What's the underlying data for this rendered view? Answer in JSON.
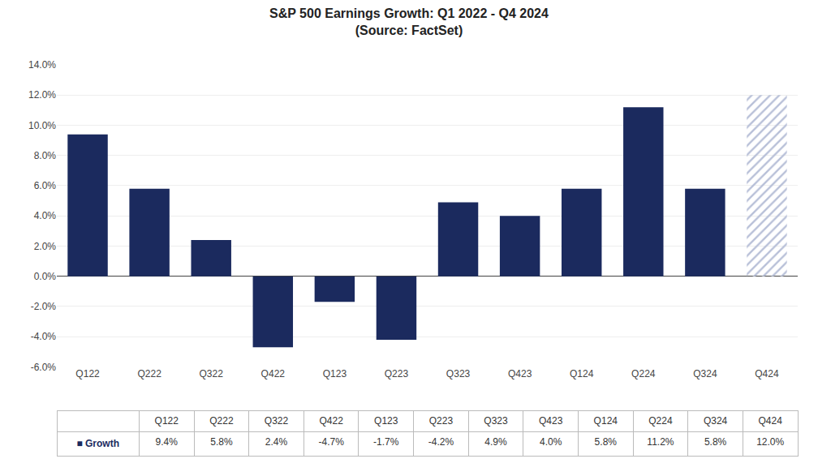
{
  "chart_data": {
    "type": "bar",
    "title": "S&P 500 Earnings Growth: Q1 2022 - Q4 2024",
    "subtitle": "(Source: FactSet)",
    "categories": [
      "Q122",
      "Q222",
      "Q322",
      "Q422",
      "Q123",
      "Q223",
      "Q323",
      "Q423",
      "Q124",
      "Q224",
      "Q324",
      "Q424"
    ],
    "series": [
      {
        "name": "■ Growth",
        "color": "#1b2a5e",
        "values": [
          9.4,
          5.8,
          2.4,
          -4.7,
          -1.7,
          -4.2,
          4.9,
          4.0,
          5.8,
          11.2,
          5.8,
          12.0
        ],
        "value_labels": [
          "9.4%",
          "5.8%",
          "2.4%",
          "-4.7%",
          "-1.7%",
          "-4.2%",
          "4.9%",
          "4.0%",
          "5.8%",
          "11.2%",
          "5.8%",
          "12.0%"
        ],
        "colors": [
          "#1b2a5e",
          "#1b2a5e",
          "#1b2a5e",
          "#1b2a5e",
          "#1b2a5e",
          "#1b2a5e",
          "#1b2a5e",
          "#1b2a5e",
          "#1b2a5e",
          "#1b2a5e",
          "#1b2a5e",
          "#b8c0d8"
        ]
      }
    ],
    "ylim": [
      -6.0,
      14.0
    ],
    "yticks": [
      {
        "value": -6.0,
        "label": "-6.0%"
      },
      {
        "value": -4.0,
        "label": "-4.0%"
      },
      {
        "value": -2.0,
        "label": "-2.0%"
      },
      {
        "value": 0.0,
        "label": "0.0%"
      },
      {
        "value": 2.0,
        "label": "2.0%"
      },
      {
        "value": 4.0,
        "label": "4.0%"
      },
      {
        "value": 6.0,
        "label": "6.0%"
      },
      {
        "value": 8.0,
        "label": "8.0%"
      },
      {
        "value": 10.0,
        "label": "10.0%"
      },
      {
        "value": 12.0,
        "label": "12.0%"
      },
      {
        "value": 14.0,
        "label": "14.0%"
      }
    ],
    "grid": true
  }
}
